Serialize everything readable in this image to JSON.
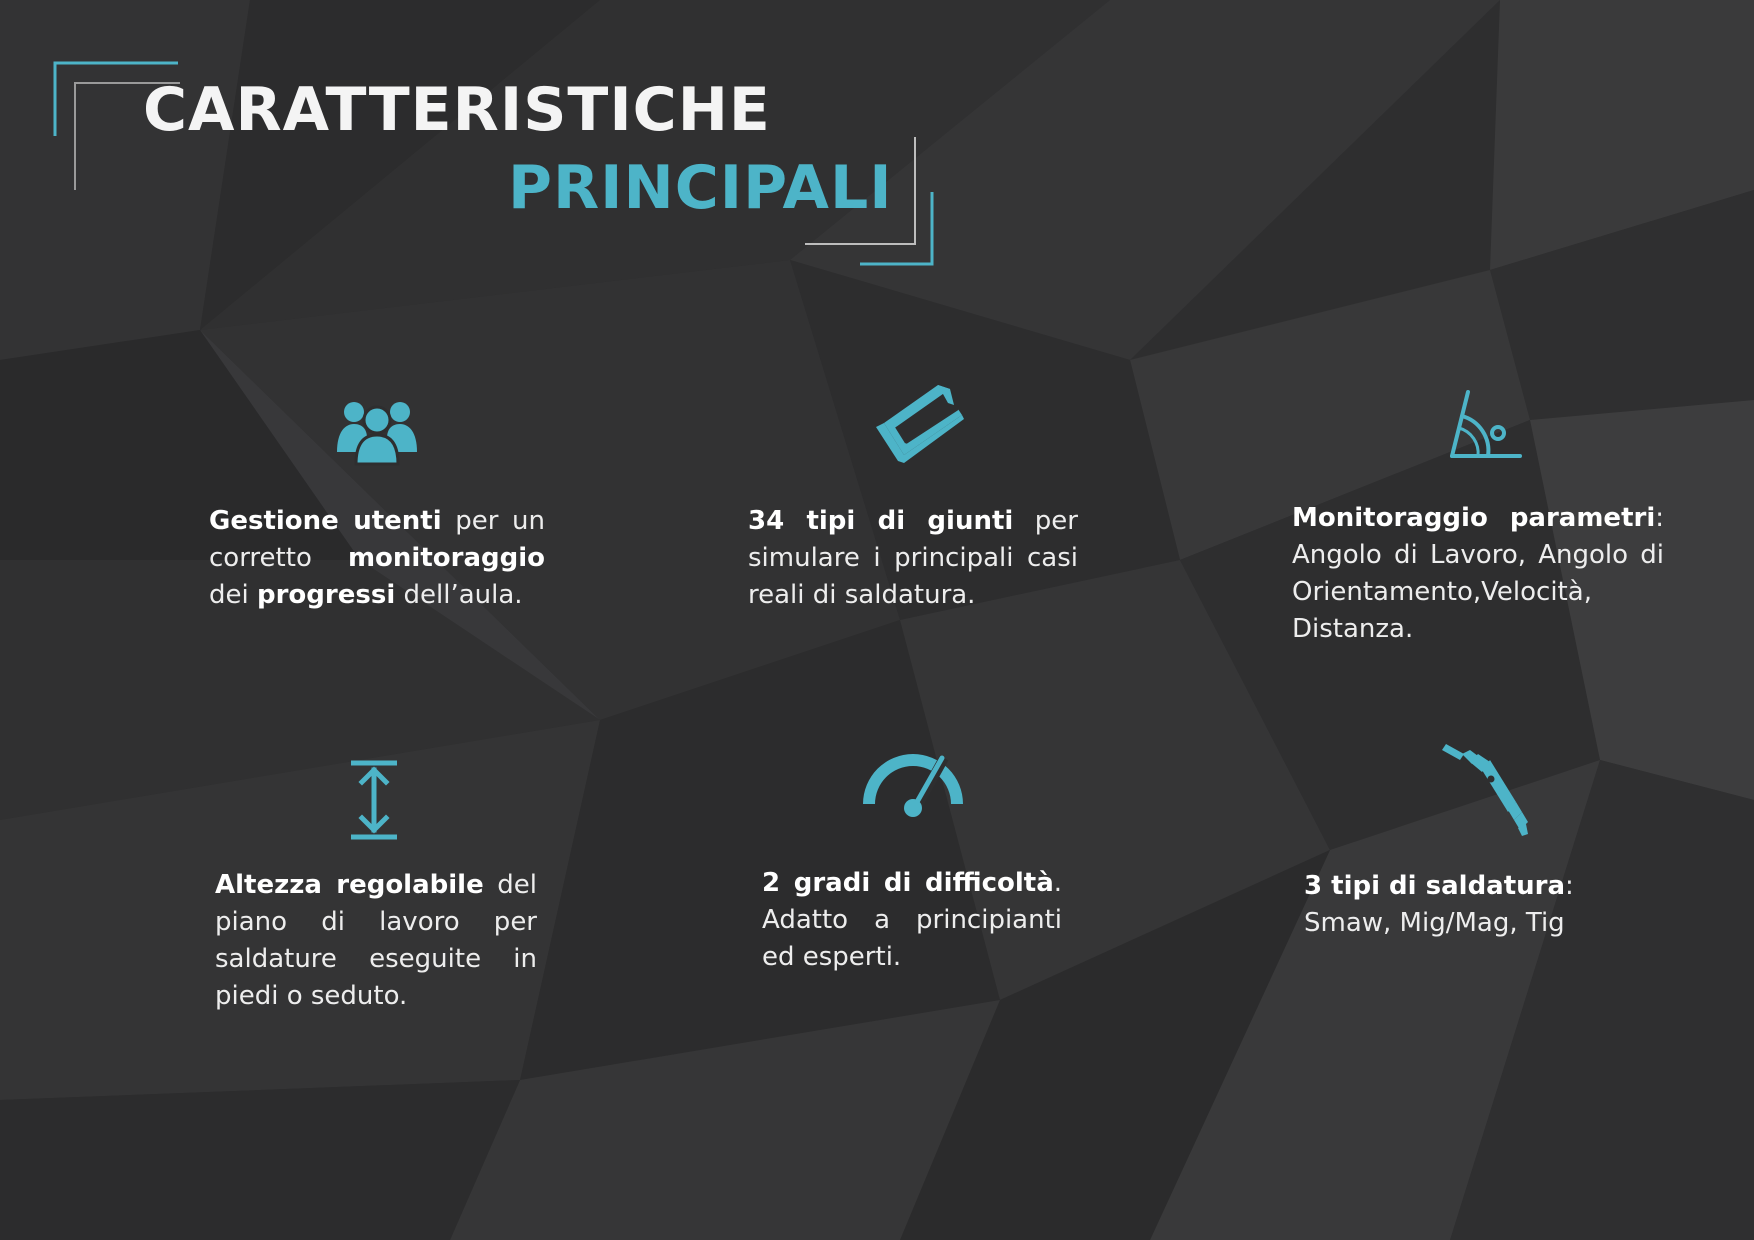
{
  "theme": {
    "accent": "#4db4c8",
    "background": "#2e2e2f"
  },
  "heading": {
    "line1": "CARATTERISTICHE",
    "line2": "PRINCIPALI"
  },
  "features": [
    {
      "icon": "users-group-icon",
      "parts": [
        {
          "t": "Gestione utenti",
          "b": true
        },
        {
          "t": " per un corretto ",
          "b": false
        },
        {
          "t": "monitoraggio",
          "b": true
        },
        {
          "t": " dei ",
          "b": false
        },
        {
          "t": "progressi",
          "b": true
        },
        {
          "t": " dell’aula.",
          "b": false
        }
      ]
    },
    {
      "icon": "angle-profile-icon",
      "parts": [
        {
          "t": "34 tipi di giunti",
          "b": true
        },
        {
          "t": " per simulare i principali casi reali di saldatura.",
          "b": false
        }
      ]
    },
    {
      "icon": "angle-measure-icon",
      "parts": [
        {
          "t": "Monitoraggio parametri",
          "b": true
        },
        {
          "t": ": Angolo di Lavoro, Angolo di Orientamento,Velocità, Distanza.",
          "b": false
        }
      ]
    },
    {
      "icon": "height-adjust-icon",
      "parts": [
        {
          "t": "Altezza regolabile",
          "b": true
        },
        {
          "t": " del piano di lavoro per saldature eseguite in piedi o seduto.",
          "b": false
        }
      ]
    },
    {
      "icon": "speedometer-icon",
      "parts": [
        {
          "t": "2 gradi di difficoltà",
          "b": true
        },
        {
          "t": ". Adatto a principianti ed esperti.",
          "b": false
        }
      ]
    },
    {
      "icon": "welding-torch-icon",
      "parts": [
        {
          "t": "3 tipi di saldatura",
          "b": true
        },
        {
          "t": ": Smaw, Mig/Mag, Tig",
          "b": false
        }
      ]
    }
  ]
}
